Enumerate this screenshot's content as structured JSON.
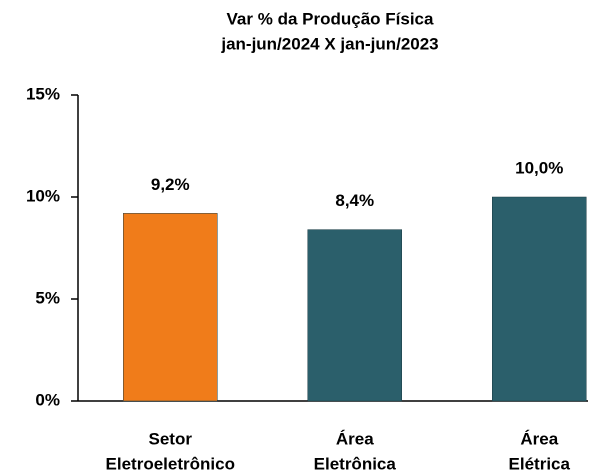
{
  "chart_data": {
    "type": "bar",
    "title": [
      "Var % da Produção Física",
      "jan-jun/2024 X jan-jun/2023"
    ],
    "categories": [
      [
        "Setor",
        "Eletroeletrônico"
      ],
      [
        "Área",
        "Eletrônica"
      ],
      [
        "Área",
        "Elétrica"
      ]
    ],
    "values": [
      9.2,
      8.4,
      10.0
    ],
    "value_labels": [
      "9,2%",
      "8,4%",
      "10,0%"
    ],
    "colors": [
      "#f07c1a",
      "#2b5f6b",
      "#2b5f6b"
    ],
    "ylim": [
      0,
      15
    ],
    "yticks": [
      {
        "value": 0,
        "label": "0%"
      },
      {
        "value": 5,
        "label": "5%"
      },
      {
        "value": 10,
        "label": "10%"
      },
      {
        "value": 15,
        "label": "15%"
      }
    ],
    "grid": false
  }
}
